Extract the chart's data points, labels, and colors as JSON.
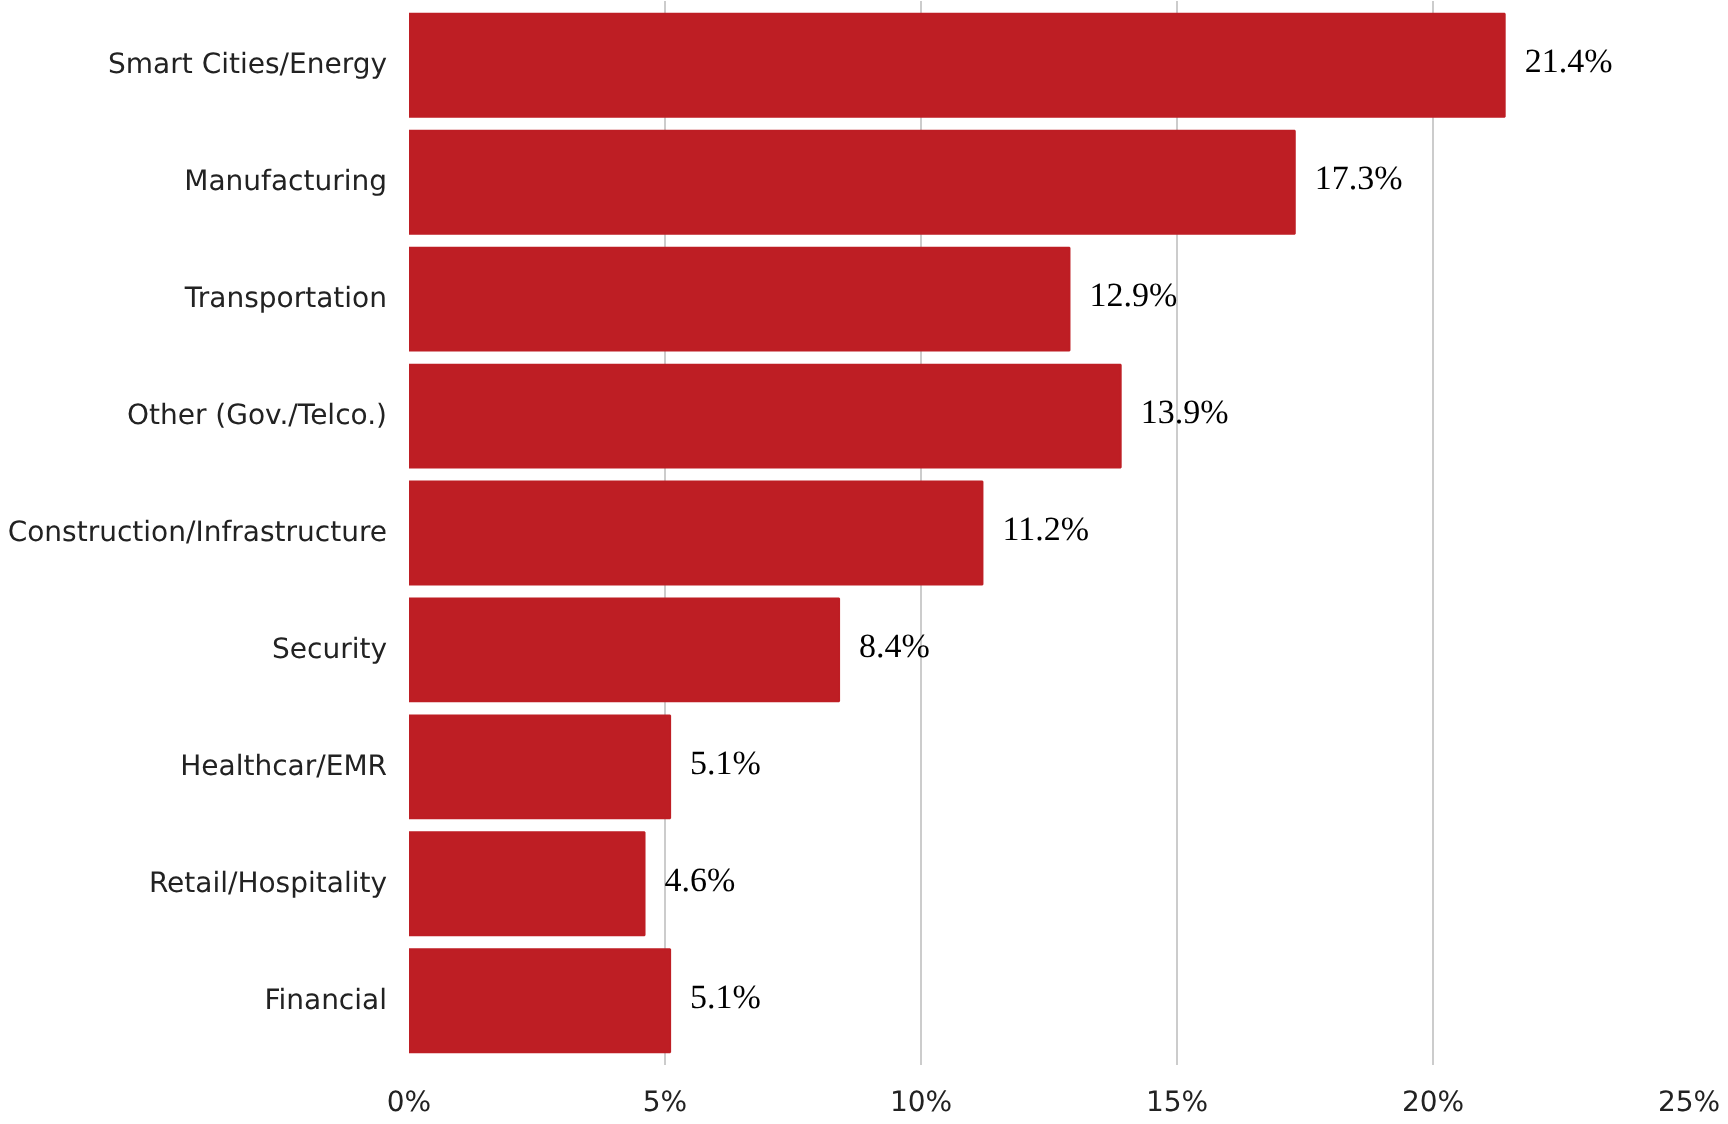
{
  "chart_data": {
    "type": "bar",
    "orientation": "horizontal",
    "categories": [
      "Smart Cities/Energy",
      "Manufacturing",
      "Transportation",
      "Other (Gov./Telco.)",
      "Construction/Infrastructure",
      "Security",
      "Healthcar/EMR",
      "Retail/Hospitality",
      "Financial"
    ],
    "values": [
      21.4,
      17.3,
      12.9,
      13.9,
      11.2,
      8.4,
      5.1,
      4.6,
      5.1
    ],
    "value_labels": [
      "21.4%",
      "17.3%",
      "12.9%",
      "13.9%",
      "11.2%",
      "8.4%",
      "5.1%",
      "4.6%",
      "5.1%"
    ],
    "color": "#be1e24",
    "xlim": [
      0,
      25
    ],
    "xticks": [
      {
        "value": 0,
        "label": "0%"
      },
      {
        "value": 5,
        "label": "5%"
      },
      {
        "value": 10,
        "label": "10%"
      },
      {
        "value": 15,
        "label": "15%"
      },
      {
        "value": 20,
        "label": "20%"
      },
      {
        "value": 25,
        "label": "25%"
      }
    ],
    "grid": "x"
  }
}
